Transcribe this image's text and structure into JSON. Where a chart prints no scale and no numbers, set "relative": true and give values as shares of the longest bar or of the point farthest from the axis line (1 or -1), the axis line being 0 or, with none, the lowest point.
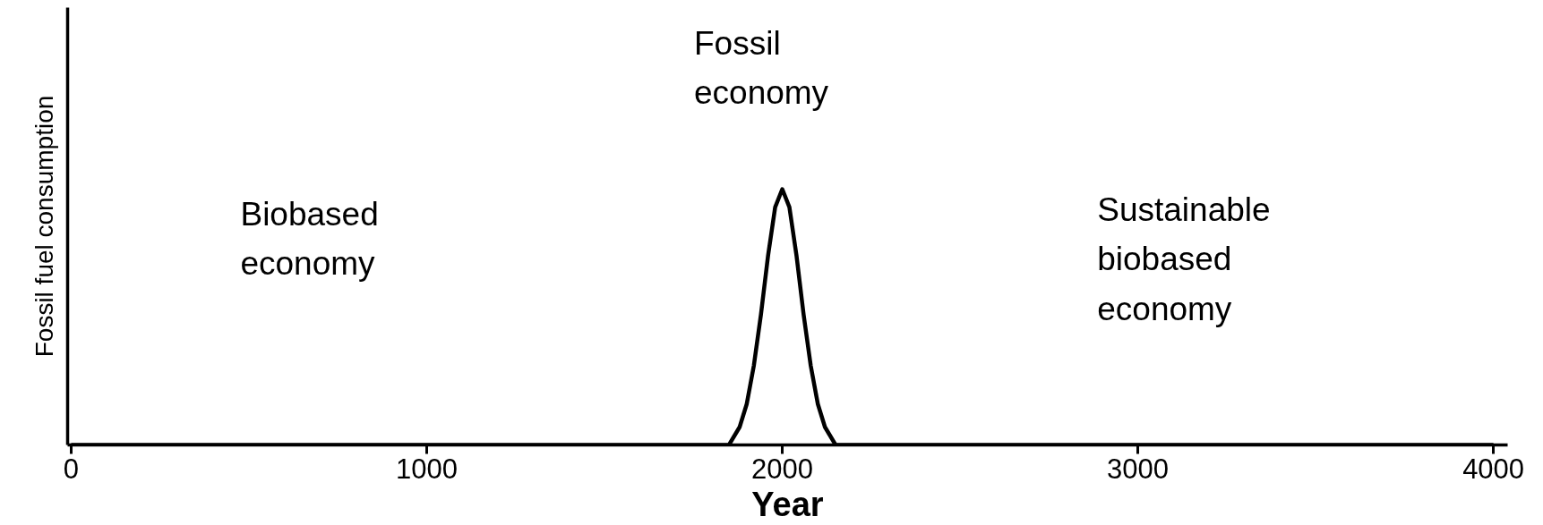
{
  "chart_data": {
    "type": "line",
    "relative": true,
    "xlabel": "Year",
    "ylabel": "Fossil fuel consumption",
    "x": [
      0,
      1850,
      1880,
      1900,
      1920,
      1940,
      1960,
      1980,
      2000,
      2020,
      2040,
      2060,
      2080,
      2100,
      2120,
      2150,
      4000
    ],
    "series": [
      {
        "color": "#000000",
        "values": [
          0,
          0,
          0.07,
          0.16,
          0.31,
          0.51,
          0.74,
          0.93,
          1,
          0.93,
          0.74,
          0.51,
          0.31,
          0.16,
          0.07,
          0,
          0
        ]
      }
    ],
    "xlim": [
      -10,
      4040
    ],
    "xticks": [
      0,
      1000,
      2000,
      3000,
      4000
    ],
    "grid": false,
    "marker": "none",
    "line_style": "solid",
    "annotations": [
      "Biobased\neconomy",
      "Fossil\neconomy",
      "Sustainable\nbiobased\neconomy"
    ]
  }
}
